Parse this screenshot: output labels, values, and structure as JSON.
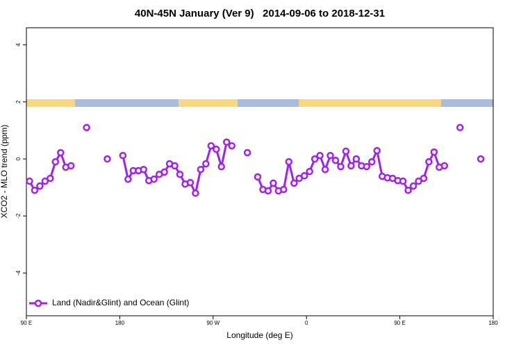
{
  "chart_data": {
    "type": "line",
    "title": "40N-45N January (Ver 9)   2014-09-06 to 2018-12-31",
    "xlabel": "Longitude (deg E)",
    "ylabel": "XCO2 - MLO trend (ppm)",
    "xlim": [
      90,
      540
    ],
    "xticks": [
      {
        "value": 90,
        "label": "90 E"
      },
      {
        "value": 180,
        "label": "180"
      },
      {
        "value": 270,
        "label": "90 W"
      },
      {
        "value": 360,
        "label": "0"
      },
      {
        "value": 450,
        "label": "90 E"
      },
      {
        "value": 540,
        "label": "180"
      }
    ],
    "ylim": [
      -5.5,
      4.6
    ],
    "yticks": [
      -4,
      -2,
      0,
      2,
      4
    ],
    "legend": "bottom-left",
    "x": [
      93,
      98,
      103,
      108,
      113,
      118,
      123,
      128,
      133,
      null,
      148,
      null,
      168,
      null,
      183,
      188,
      193,
      198,
      203,
      208,
      213,
      218,
      223,
      228,
      233,
      238,
      243,
      248,
      253,
      258,
      263,
      268,
      273,
      278,
      283,
      288,
      null,
      303,
      null,
      313,
      318,
      323,
      328,
      333,
      338,
      343,
      348,
      353,
      358,
      363,
      368,
      373,
      378,
      383,
      388,
      393,
      398,
      403,
      408,
      413,
      418,
      423,
      428,
      433,
      438,
      443,
      448,
      453,
      458,
      463,
      468,
      473,
      478,
      483,
      488,
      493,
      null,
      508,
      null,
      528
    ],
    "series": [
      {
        "name": "Land (Nadir&Glint) and Ocean (Glint)",
        "color": "#a020f0",
        "values": [
          -0.78,
          -1.1,
          -0.95,
          -0.78,
          -0.68,
          -0.1,
          0.22,
          -0.29,
          -0.24,
          null,
          1.1,
          null,
          0.0,
          null,
          0.12,
          -0.71,
          -0.41,
          -0.41,
          -0.37,
          -0.76,
          -0.71,
          -0.54,
          -0.46,
          -0.17,
          -0.24,
          -0.54,
          -0.88,
          -0.83,
          -1.2,
          -0.37,
          -0.17,
          0.46,
          0.34,
          -0.27,
          0.59,
          0.46,
          null,
          0.22,
          null,
          -0.63,
          -1.07,
          -1.12,
          -0.85,
          -1.12,
          -1.07,
          -0.1,
          -0.85,
          -0.68,
          -0.59,
          -0.44,
          0.0,
          0.12,
          -0.37,
          0.12,
          -0.05,
          -0.27,
          0.27,
          -0.24,
          0.0,
          -0.24,
          -0.27,
          -0.1,
          0.29,
          -0.61,
          -0.66,
          -0.68,
          -0.76,
          -0.78,
          -1.1,
          -0.95,
          -0.78,
          -0.68,
          -0.1,
          0.24,
          -0.29,
          -0.24,
          null,
          1.1,
          null,
          0.0
        ]
      }
    ]
  }
}
